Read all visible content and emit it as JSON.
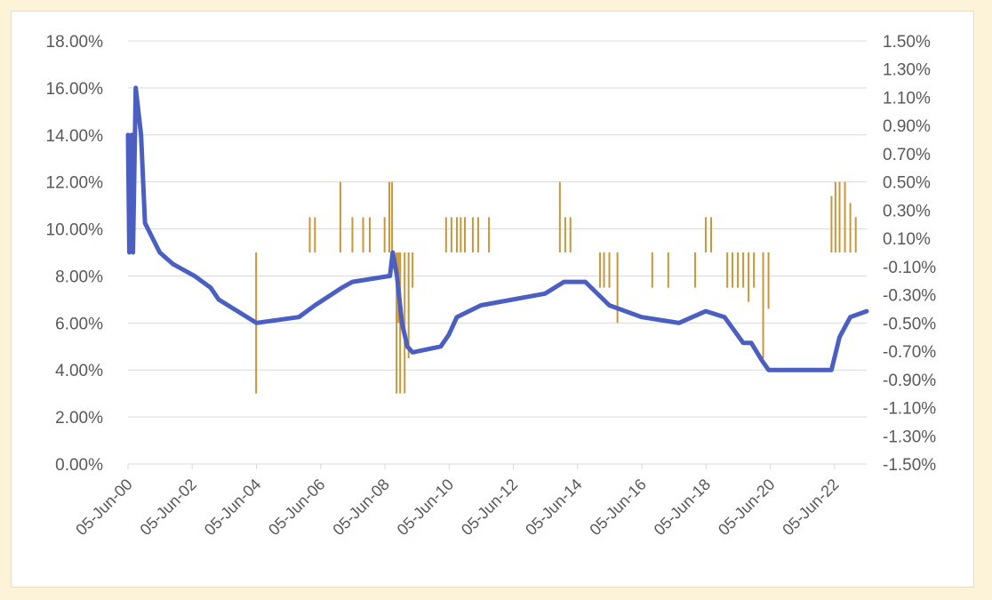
{
  "chart_data": {
    "type": "line",
    "title": "",
    "xlabel": "",
    "ylabel": "",
    "y2label": "",
    "grid": true,
    "legend": "none",
    "xlim": [
      "2000-06-05",
      "2023-06-05"
    ],
    "ylim": [
      0,
      18
    ],
    "y2lim": [
      -1.5,
      1.5
    ],
    "x_tick_labels": [
      "05-Jun-00",
      "05-Jun-02",
      "05-Jun-04",
      "05-Jun-06",
      "05-Jun-08",
      "05-Jun-10",
      "05-Jun-12",
      "05-Jun-14",
      "05-Jun-16",
      "05-Jun-18",
      "05-Jun-20",
      "05-Jun-22"
    ],
    "y_tick_labels": [
      "0.00%",
      "2.00%",
      "4.00%",
      "6.00%",
      "8.00%",
      "10.00%",
      "12.00%",
      "14.00%",
      "16.00%",
      "18.00%"
    ],
    "y2_tick_labels": [
      "-1.50%",
      "-1.30%",
      "-1.10%",
      "-0.90%",
      "-0.70%",
      "-0.50%",
      "-0.30%",
      "-0.10%",
      "0.10%",
      "0.30%",
      "0.50%",
      "0.70%",
      "0.90%",
      "1.10%",
      "1.30%",
      "1.50%"
    ],
    "colors": {
      "line": "#4a5fc1",
      "bars": "#c9963a",
      "grid": "#d9d9d9",
      "text": "#595959"
    },
    "series": [
      {
        "type": "line",
        "axis": "left",
        "unit": "%",
        "points": [
          [
            "2000-06-05",
            14.0
          ],
          [
            "2000-06-20",
            9.0
          ],
          [
            "2000-07-15",
            14.0
          ],
          [
            "2000-08-01",
            9.0
          ],
          [
            "2000-09-01",
            16.0
          ],
          [
            "2000-11-01",
            14.0
          ],
          [
            "2000-12-15",
            10.25
          ],
          [
            "2001-06-01",
            9.0
          ],
          [
            "2001-11-01",
            8.5
          ],
          [
            "2002-07-01",
            8.0
          ],
          [
            "2003-01-01",
            7.5
          ],
          [
            "2003-04-01",
            7.0
          ],
          [
            "2004-06-05",
            6.0
          ],
          [
            "2005-10-01",
            6.25
          ],
          [
            "2006-04-01",
            6.75
          ],
          [
            "2007-02-01",
            7.5
          ],
          [
            "2007-06-01",
            7.75
          ],
          [
            "2008-08-01",
            8.0
          ],
          [
            "2008-09-01",
            9.0
          ],
          [
            "2008-10-20",
            8.0
          ],
          [
            "2008-12-15",
            6.0
          ],
          [
            "2009-02-15",
            5.0
          ],
          [
            "2009-04-15",
            4.75
          ],
          [
            "2010-03-01",
            5.0
          ],
          [
            "2010-06-01",
            5.5
          ],
          [
            "2010-09-01",
            6.25
          ],
          [
            "2011-06-01",
            6.75
          ],
          [
            "2013-06-01",
            7.25
          ],
          [
            "2014-01-01",
            7.75
          ],
          [
            "2014-09-01",
            7.75
          ],
          [
            "2015-06-01",
            6.75
          ],
          [
            "2016-06-01",
            6.25
          ],
          [
            "2017-08-01",
            6.0
          ],
          [
            "2018-06-01",
            6.5
          ],
          [
            "2019-01-01",
            6.25
          ],
          [
            "2019-08-01",
            5.15
          ],
          [
            "2019-11-01",
            5.15
          ],
          [
            "2020-03-01",
            4.4
          ],
          [
            "2020-05-15",
            4.0
          ],
          [
            "2022-05-01",
            4.0
          ],
          [
            "2022-08-01",
            5.4
          ],
          [
            "2022-12-01",
            6.25
          ],
          [
            "2023-06-05",
            6.5
          ]
        ]
      },
      {
        "type": "bar",
        "axis": "right",
        "unit": "%",
        "points": [
          [
            "2004-06-01",
            -1.0
          ],
          [
            "2006-02-01",
            0.25
          ],
          [
            "2006-04-01",
            0.25
          ],
          [
            "2007-01-15",
            0.5
          ],
          [
            "2007-06-01",
            0.25
          ],
          [
            "2007-10-01",
            0.25
          ],
          [
            "2007-12-15",
            0.25
          ],
          [
            "2008-06-01",
            0.25
          ],
          [
            "2008-07-25",
            0.5
          ],
          [
            "2008-08-25",
            0.5
          ],
          [
            "2008-10-15",
            -1.0
          ],
          [
            "2008-11-05",
            -0.5
          ],
          [
            "2008-11-25",
            -1.0
          ],
          [
            "2009-01-15",
            -1.0
          ],
          [
            "2009-03-01",
            -0.75
          ],
          [
            "2009-04-15",
            -0.25
          ],
          [
            "2010-05-01",
            0.25
          ],
          [
            "2010-07-01",
            0.25
          ],
          [
            "2010-09-01",
            0.25
          ],
          [
            "2010-10-15",
            0.25
          ],
          [
            "2010-12-01",
            0.25
          ],
          [
            "2011-03-01",
            0.25
          ],
          [
            "2011-05-01",
            0.25
          ],
          [
            "2011-09-01",
            0.25
          ],
          [
            "2013-11-15",
            0.5
          ],
          [
            "2014-01-15",
            0.25
          ],
          [
            "2014-03-15",
            0.25
          ],
          [
            "2015-02-15",
            -0.25
          ],
          [
            "2015-04-01",
            -0.25
          ],
          [
            "2015-06-01",
            -0.25
          ],
          [
            "2015-09-01",
            -0.5
          ],
          [
            "2016-10-01",
            -0.25
          ],
          [
            "2017-04-01",
            -0.25
          ],
          [
            "2018-02-01",
            -0.25
          ],
          [
            "2018-06-01",
            0.25
          ],
          [
            "2018-08-01",
            0.25
          ],
          [
            "2019-02-01",
            -0.25
          ],
          [
            "2019-04-01",
            -0.25
          ],
          [
            "2019-06-01",
            -0.25
          ],
          [
            "2019-08-01",
            -0.25
          ],
          [
            "2019-10-01",
            -0.35
          ],
          [
            "2019-12-01",
            -0.25
          ],
          [
            "2020-03-15",
            -0.75
          ],
          [
            "2020-05-15",
            -0.4
          ],
          [
            "2022-05-01",
            0.4
          ],
          [
            "2022-06-15",
            0.5
          ],
          [
            "2022-08-01",
            0.5
          ],
          [
            "2022-10-01",
            0.5
          ],
          [
            "2022-12-01",
            0.35
          ],
          [
            "2023-02-01",
            0.25
          ]
        ]
      }
    ]
  }
}
